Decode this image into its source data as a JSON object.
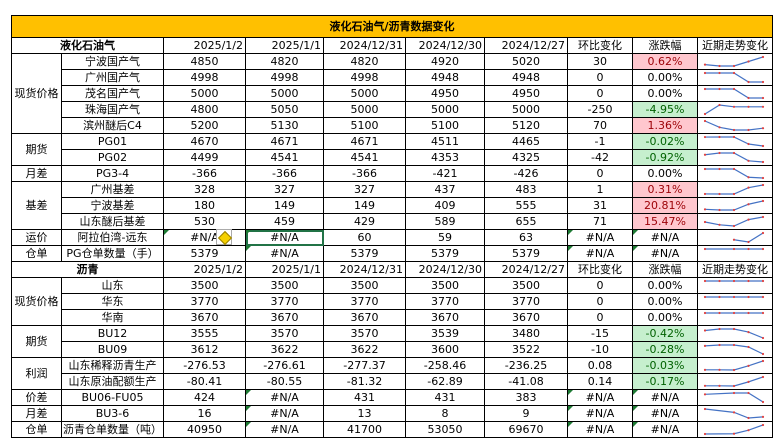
{
  "title": "液化石油气/沥青数据变化",
  "colors": {
    "header": "#FFC000",
    "up_fill": "#FFC7CE",
    "up_text": "#9C0006",
    "down_fill": "#C6EFCE",
    "down_text": "#006100",
    "spark": "#4472C4",
    "marker": "#E04040"
  },
  "sections": [
    {
      "name": "液化石油气",
      "dates": [
        "2025/1/2",
        "2025/1/1",
        "2024/12/31",
        "2024/12/30",
        "2024/12/27"
      ],
      "change_label": "环比变化",
      "pct_label": "涨跌幅",
      "trend_label": "近期走势变化",
      "groups": [
        {
          "label": "现货价格",
          "rows": [
            {
              "name": "宁波国产气",
              "values": [
                "4850",
                "4820",
                "4820",
                "4920",
                "5020"
              ],
              "change": "30",
              "pct": "0.62%",
              "dir": "up"
            },
            {
              "name": "广州国产气",
              "values": [
                "4998",
                "4998",
                "4998",
                "4948",
                "4948"
              ],
              "change": "0",
              "pct": "0.00%",
              "dir": ""
            },
            {
              "name": "茂名国产气",
              "values": [
                "5000",
                "5000",
                "5000",
                "4950",
                "4950"
              ],
              "change": "0",
              "pct": "0.00%",
              "dir": ""
            },
            {
              "name": "珠海国产气",
              "values": [
                "4800",
                "5050",
                "5000",
                "5000",
                "5000"
              ],
              "change": "-250",
              "pct": "-4.95%",
              "dir": "down"
            },
            {
              "name": "滨州醚后C4",
              "values": [
                "5200",
                "5130",
                "5100",
                "5100",
                "5120"
              ],
              "change": "70",
              "pct": "1.36%",
              "dir": "up"
            }
          ]
        },
        {
          "label": "期货",
          "rows": [
            {
              "name": "PG01",
              "values": [
                "4670",
                "4671",
                "4671",
                "4511",
                "4465"
              ],
              "change": "-1",
              "pct": "-0.02%",
              "dir": "down"
            },
            {
              "name": "PG02",
              "values": [
                "4499",
                "4541",
                "4541",
                "4353",
                "4325"
              ],
              "change": "-42",
              "pct": "-0.92%",
              "dir": "down"
            }
          ]
        },
        {
          "label": "月差",
          "rows": [
            {
              "name": "PG3-4",
              "values": [
                "-366",
                "-366",
                "-366",
                "-421",
                "-426"
              ],
              "change": "0",
              "pct": "0.00%",
              "dir": ""
            }
          ]
        },
        {
          "label": "基差",
          "rows": [
            {
              "name": "广州基差",
              "values": [
                "328",
                "327",
                "327",
                "437",
                "483"
              ],
              "change": "1",
              "pct": "0.31%",
              "dir": "up"
            },
            {
              "name": "宁波基差",
              "values": [
                "180",
                "149",
                "149",
                "409",
                "555"
              ],
              "change": "31",
              "pct": "20.81%",
              "dir": "up"
            },
            {
              "name": "山东醚后基差",
              "values": [
                "530",
                "459",
                "429",
                "589",
                "655"
              ],
              "change": "71",
              "pct": "15.47%",
              "dir": "up"
            }
          ]
        },
        {
          "label": "运价",
          "rows": [
            {
              "name": "阿拉伯湾-远东",
              "values": [
                "#N/A",
                "#N/A",
                "60",
                "59",
                "63"
              ],
              "change": "#N/A",
              "pct": "#N/A",
              "dir": ""
            }
          ]
        },
        {
          "label": "仓单",
          "rows": [
            {
              "name": "PG仓单数量（手）",
              "values": [
                "5379",
                "#N/A",
                "5379",
                "5379",
                "5379"
              ],
              "change": "#N/A",
              "pct": "#N/A",
              "dir": ""
            }
          ]
        }
      ]
    },
    {
      "name": "沥青",
      "dates": [
        "2025/1/2",
        "2025/1/1",
        "2024/12/31",
        "2024/12/30",
        "2024/12/27"
      ],
      "change_label": "环比变化",
      "pct_label": "涨跌幅",
      "trend_label": "近期走势变化",
      "groups": [
        {
          "label": "现货价格",
          "rows": [
            {
              "name": "山东",
              "values": [
                "3500",
                "3500",
                "3500",
                "3500",
                "3500"
              ],
              "change": "0",
              "pct": "0.00%",
              "dir": ""
            },
            {
              "name": "华东",
              "values": [
                "3770",
                "3770",
                "3770",
                "3770",
                "3770"
              ],
              "change": "0",
              "pct": "0.00%",
              "dir": ""
            },
            {
              "name": "华南",
              "values": [
                "3670",
                "3670",
                "3670",
                "3670",
                "3670"
              ],
              "change": "0",
              "pct": "0.00%",
              "dir": ""
            }
          ]
        },
        {
          "label": "期货",
          "rows": [
            {
              "name": "BU12",
              "values": [
                "3555",
                "3570",
                "3570",
                "3539",
                "3480"
              ],
              "change": "-15",
              "pct": "-0.42%",
              "dir": "down"
            },
            {
              "name": "BU09",
              "values": [
                "3612",
                "3622",
                "3622",
                "3600",
                "3522"
              ],
              "change": "-10",
              "pct": "-0.28%",
              "dir": "down"
            }
          ]
        },
        {
          "label": "利润",
          "rows": [
            {
              "name": "山东稀释沥青生产",
              "values": [
                "-276.53",
                "-276.61",
                "-277.37",
                "-258.46",
                "-236.25"
              ],
              "change": "0.08",
              "pct": "-0.03%",
              "dir": "down"
            },
            {
              "name": "山东原油配额生产",
              "values": [
                "-80.41",
                "-80.55",
                "-81.32",
                "-62.89",
                "-41.08"
              ],
              "change": "0.14",
              "pct": "-0.17%",
              "dir": "down"
            }
          ]
        },
        {
          "label": "价差",
          "rows": [
            {
              "name": "BU06-FU05",
              "values": [
                "424",
                "#N/A",
                "431",
                "431",
                "383"
              ],
              "change": "#N/A",
              "pct": "#N/A",
              "dir": ""
            }
          ]
        },
        {
          "label": "月差",
          "rows": [
            {
              "name": "BU3-6",
              "values": [
                "16",
                "#N/A",
                "13",
                "8",
                "9"
              ],
              "change": "#N/A",
              "pct": "#N/A",
              "dir": ""
            }
          ]
        },
        {
          "label": "仓单",
          "rows": [
            {
              "name": "沥青仓单数量（吨）",
              "values": [
                "40950",
                "#N/A",
                "41700",
                "53050",
                "69670"
              ],
              "change": "#N/A",
              "pct": "#N/A",
              "dir": ""
            }
          ]
        }
      ]
    }
  ],
  "selected_cell": {
    "section": 0,
    "row": "阿拉伯湾-远东",
    "column": "2025/1/1"
  }
}
